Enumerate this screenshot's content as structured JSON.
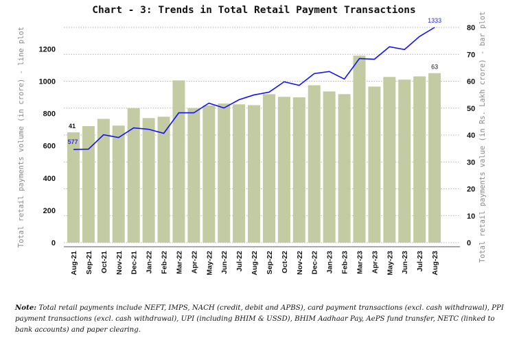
{
  "chart_data": {
    "type": "bar+line",
    "title": "Chart - 3: Trends in Total Retail Payment Transactions",
    "ylabel_left": "Total retail payments volume (in crore) - line plot",
    "ylabel_right": "Total retail payments value (in Rs. Lakh crore) - bar plot",
    "categories": [
      "Aug-21",
      "Sep-21",
      "Oct-21",
      "Nov-21",
      "Dec-21",
      "Jan-22",
      "Feb-22",
      "Mar-22",
      "Apr-22",
      "May-22",
      "Jun-22",
      "Jul-22",
      "Aug-22",
      "Sep-22",
      "Oct-22",
      "Nov-22",
      "Dec-22",
      "Jan-23",
      "Feb-23",
      "Mar-23",
      "Apr-23",
      "May-23",
      "Jun-23",
      "Jul-23",
      "Aug-23"
    ],
    "series": [
      {
        "kind": "bar",
        "axis": "right",
        "color": "#c3cba2",
        "values": [
          41,
          43.3,
          46,
          43.5,
          50,
          46.3,
          46.8,
          60.3,
          50,
          51,
          51.7,
          51.4,
          51.1,
          55.2,
          54.2,
          54,
          58.5,
          56.2,
          55.2,
          69.5,
          58,
          61.6,
          60.6,
          61.8,
          63
        ]
      },
      {
        "kind": "line",
        "axis": "left",
        "color": "#1010ff",
        "values": [
          577,
          579,
          668,
          651,
          711,
          702,
          677,
          804,
          804,
          864,
          834,
          885,
          915,
          932,
          996,
          974,
          1047,
          1060,
          1013,
          1140,
          1136,
          1213,
          1196,
          1277,
          1333
        ]
      }
    ],
    "data_labels": {
      "bar_first": "41",
      "bar_last": "63",
      "line_first": "577",
      "line_last": "1333"
    },
    "left_ticks": [
      "0",
      "200",
      "400",
      "600",
      "800",
      "1000",
      "1200"
    ],
    "left_range": [
      0,
      1333
    ],
    "right_ticks": [
      "0",
      "10",
      "20",
      "30",
      "40",
      "50",
      "60",
      "70",
      "80"
    ],
    "right_range": [
      0,
      80
    ],
    "grid": "horizontal dotted"
  },
  "note": {
    "label": "Note:",
    "text": "Total retail payments include NEFT, IMPS, NACH (credit, debit and APBS), card payment transactions (excl. cash withdrawal), PPI payment transactions (excl. cash withdrawal), UPI (including BHIM & USSD), BHIM Aadhaar Pay, AePS fund transfer, NETC (linked to bank accounts) and paper clearing."
  }
}
